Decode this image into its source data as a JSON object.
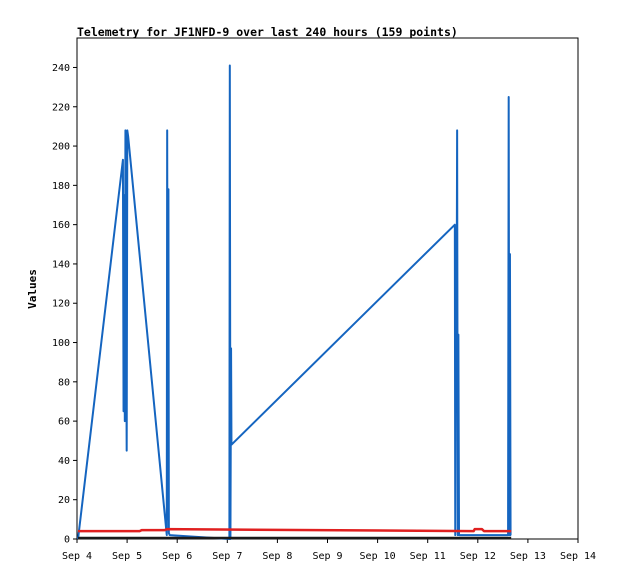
{
  "chart_data": {
    "type": "line",
    "title": "Telemetry for JF1NFD-9 over last 240 hours (159 points)",
    "xlabel": "",
    "ylabel": "Values",
    "x_ticks": [
      "Sep 4",
      "Sep 5",
      "Sep 6",
      "Sep 7",
      "Sep 8",
      "Sep 9",
      "Sep 10",
      "Sep 11",
      "Sep 12",
      "Sep 13",
      "Sep 14"
    ],
    "xlim": [
      0,
      240
    ],
    "x_unit": "hours after Sep 4 00:00",
    "ylim": [
      0,
      255
    ],
    "y_ticks": [
      0,
      20,
      40,
      60,
      80,
      100,
      120,
      140,
      160,
      180,
      200,
      220,
      240
    ],
    "grid": false,
    "series": [
      {
        "color": "#1565c0",
        "x": [
          0.5,
          22.0,
          22.3,
          22.6,
          22.9,
          23.2,
          23.5,
          23.8,
          24.1,
          24.5,
          43.0,
          43.2,
          43.5,
          43.8,
          44.0,
          44.4,
          73.0,
          73.2,
          73.5,
          73.8,
          74.0,
          181.0,
          181.2,
          181.5,
          181.8,
          182.1,
          182.4,
          182.7,
          183.0,
          183.3,
          206.5,
          206.8,
          207.1,
          207.4,
          207.7,
          208.0
        ],
        "y": [
          0,
          193,
          65,
          175,
          60,
          208,
          120,
          45,
          208,
          205,
          2,
          208,
          10,
          178,
          3,
          2,
          0,
          241,
          0,
          97,
          48,
          160,
          2,
          128,
          96,
          208,
          2,
          104,
          2,
          2,
          2,
          225,
          2,
          145,
          2,
          2
        ]
      },
      {
        "color": "#e02020",
        "x": [
          0.5,
          30,
          31,
          42,
          43,
          190,
          190.5,
          194,
          195,
          208
        ],
        "y": [
          4,
          4,
          4.5,
          4.5,
          5,
          4,
          5,
          5,
          4,
          4
        ]
      },
      {
        "color": "#1a1a1a",
        "x": [
          0.5,
          208
        ],
        "y": [
          0.5,
          0.5
        ]
      }
    ]
  }
}
